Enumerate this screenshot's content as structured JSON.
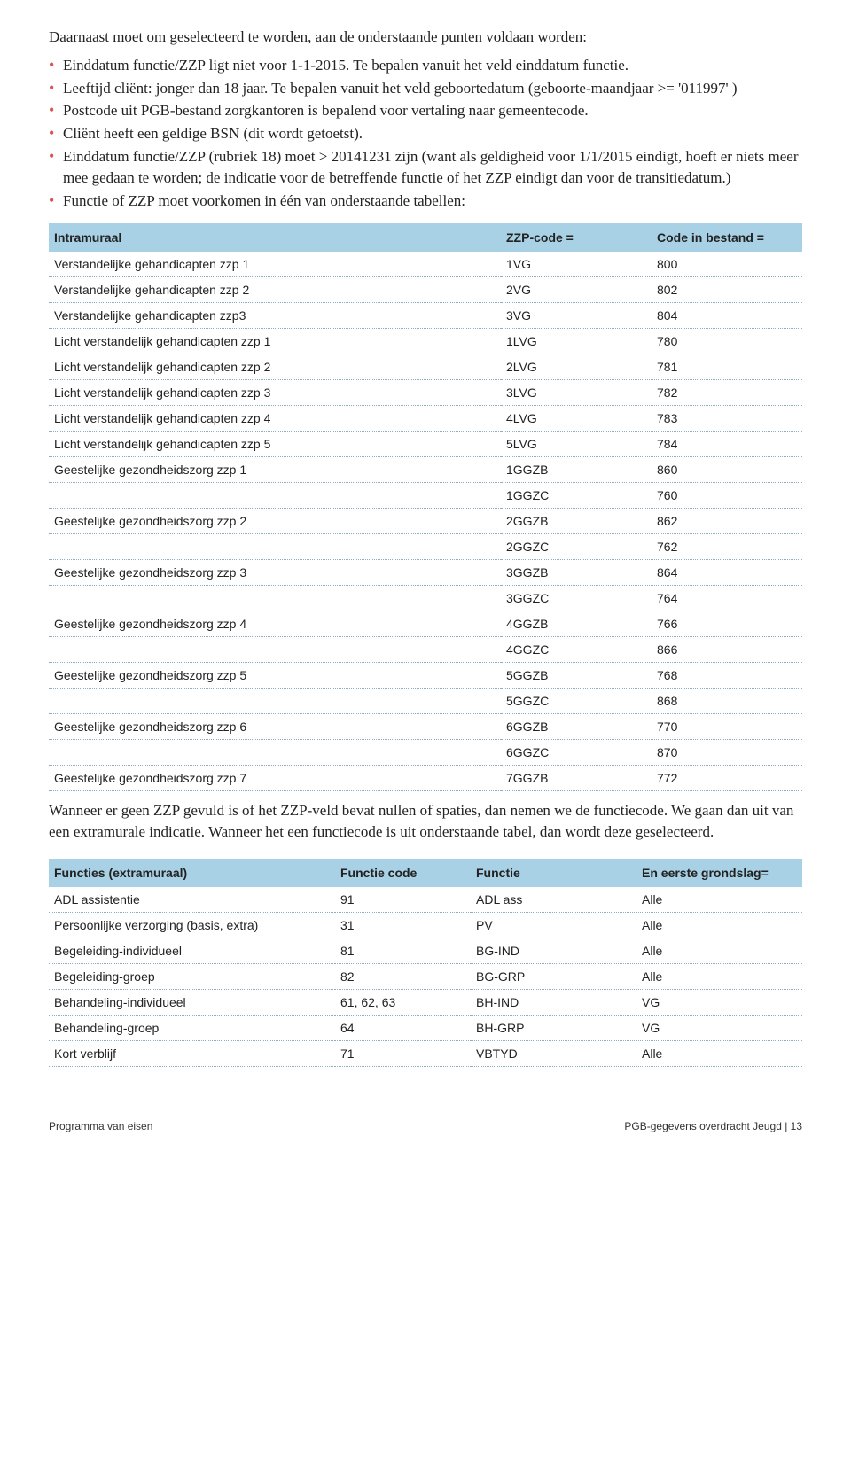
{
  "intro": "Daarnaast moet om geselecteerd te worden, aan de onderstaande punten voldaan worden:",
  "bullets": [
    "Einddatum functie/ZZP ligt niet voor 1-1-2015. Te bepalen vanuit het veld einddatum functie.",
    "Leeftijd cliënt: jonger dan 18 jaar. Te bepalen vanuit het veld geboortedatum (geboorte-maandjaar >= '011997' )",
    "Postcode uit PGB-bestand zorgkantoren is bepalend voor vertaling naar gemeentecode.",
    "Cliënt heeft een geldige BSN (dit wordt getoetst).",
    "Einddatum functie/ZZP (rubriek 18) moet > 20141231 zijn (want als geldigheid voor 1/1/2015 eindigt, hoeft er niets meer mee gedaan te worden; de indicatie voor de betreffende functie of het ZZP eindigt dan voor de transitiedatum.)",
    "Functie of ZZP moet voorkomen in één van onderstaande tabellen:"
  ],
  "table1": {
    "headers": [
      "Intramuraal",
      "ZZP-code =",
      "Code in bestand ="
    ],
    "rows": [
      [
        "Verstandelijke gehandicapten zzp 1",
        "1VG",
        "800"
      ],
      [
        "Verstandelijke gehandicapten zzp 2",
        "2VG",
        "802"
      ],
      [
        "Verstandelijke gehandicapten zzp3",
        "3VG",
        "804"
      ],
      [
        "Licht verstandelijk gehandicapten zzp 1",
        "1LVG",
        "780"
      ],
      [
        "Licht verstandelijk gehandicapten zzp 2",
        "2LVG",
        "781"
      ],
      [
        "Licht verstandelijk gehandicapten zzp 3",
        "3LVG",
        "782"
      ],
      [
        "Licht verstandelijk gehandicapten zzp 4",
        "4LVG",
        "783"
      ],
      [
        "Licht verstandelijk gehandicapten zzp 5",
        "5LVG",
        "784"
      ],
      [
        "Geestelijke gezondheidszorg zzp 1",
        "1GGZB",
        "860"
      ],
      [
        "",
        "1GGZC",
        "760"
      ],
      [
        "Geestelijke gezondheidszorg zzp 2",
        "2GGZB",
        "862"
      ],
      [
        "",
        "2GGZC",
        "762"
      ],
      [
        "Geestelijke gezondheidszorg zzp 3",
        "3GGZB",
        "864"
      ],
      [
        "",
        "3GGZC",
        "764"
      ],
      [
        "Geestelijke gezondheidszorg zzp 4",
        "4GGZB",
        "766"
      ],
      [
        "",
        "4GGZC",
        "866"
      ],
      [
        "Geestelijke gezondheidszorg zzp 5",
        "5GGZB",
        "768"
      ],
      [
        "",
        "5GGZC",
        "868"
      ],
      [
        "Geestelijke gezondheidszorg zzp 6",
        "6GGZB",
        "770"
      ],
      [
        "",
        "6GGZC",
        "870"
      ],
      [
        "Geestelijke gezondheidszorg zzp 7",
        "7GGZB",
        "772"
      ]
    ]
  },
  "midparagraph": "Wanneer er geen ZZP gevuld is of het ZZP-veld bevat nullen of spaties, dan nemen we de functiecode. We gaan dan uit van een extramurale indicatie. Wanneer het een functiecode is uit onderstaande tabel, dan wordt deze geselecteerd.",
  "table2": {
    "headers": [
      "Functies (extramuraal)",
      "Functie code",
      "Functie",
      "En eerste grondslag="
    ],
    "rows": [
      [
        "ADL assistentie",
        "91",
        "ADL ass",
        "Alle"
      ],
      [
        "Persoonlijke verzorging (basis, extra)",
        "31",
        "PV",
        "Alle"
      ],
      [
        "Begeleiding-individueel",
        "81",
        "BG-IND",
        "Alle"
      ],
      [
        "Begeleiding-groep",
        "82",
        "BG-GRP",
        "Alle"
      ],
      [
        "Behandeling-individueel",
        "61, 62, 63",
        "BH-IND",
        "VG"
      ],
      [
        "Behandeling-groep",
        "64",
        "BH-GRP",
        "VG"
      ],
      [
        "Kort verblijf",
        "71",
        "VBTYD",
        "Alle"
      ]
    ]
  },
  "footer": {
    "left": "Programma van eisen",
    "right": "PGB-gegevens overdracht Jeugd | 13"
  }
}
